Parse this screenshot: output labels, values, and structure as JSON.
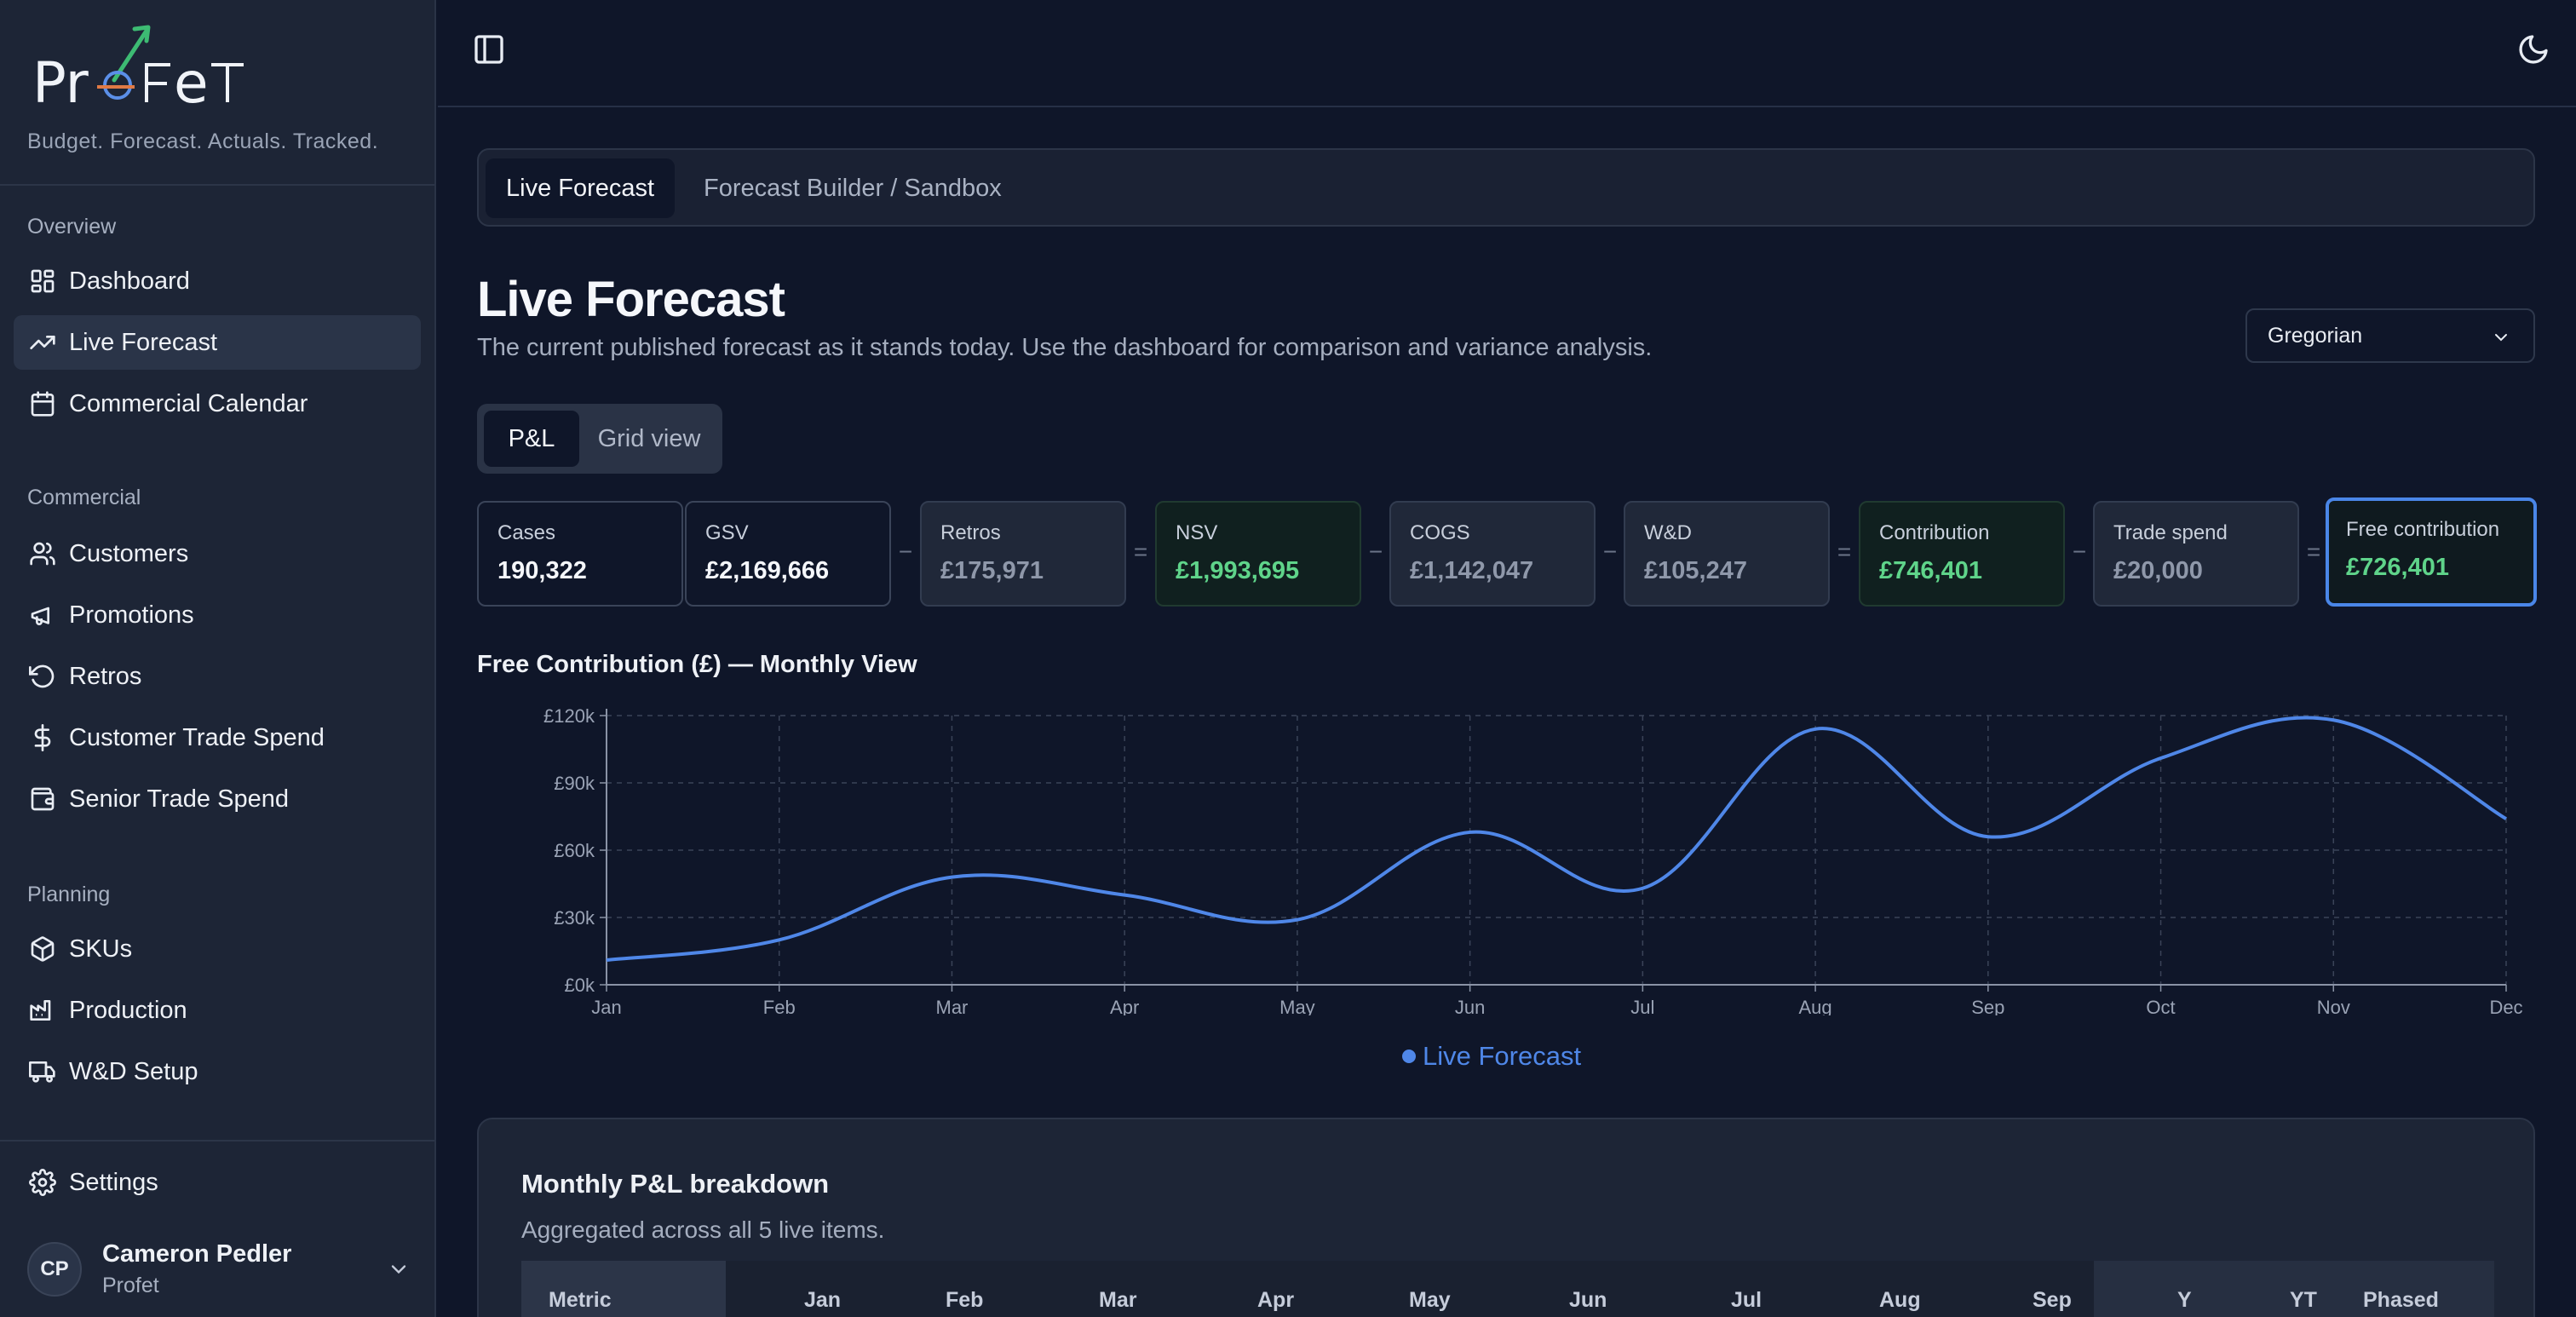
{
  "brand": {
    "tagline": "Budget. Forecast. Actuals. Tracked."
  },
  "sidebar": {
    "sections": [
      {
        "title": "Overview",
        "items": [
          {
            "label": "Dashboard",
            "icon": "dashboard-icon"
          },
          {
            "label": "Live Forecast",
            "icon": "trending-up-icon",
            "active": true
          },
          {
            "label": "Commercial Calendar",
            "icon": "calendar-icon"
          }
        ]
      },
      {
        "title": "Commercial",
        "items": [
          {
            "label": "Customers",
            "icon": "users-icon"
          },
          {
            "label": "Promotions",
            "icon": "megaphone-icon"
          },
          {
            "label": "Retros",
            "icon": "rotate-ccw-icon"
          },
          {
            "label": "Customer Trade Spend",
            "icon": "dollar-icon"
          },
          {
            "label": "Senior Trade Spend",
            "icon": "wallet-icon"
          }
        ]
      },
      {
        "title": "Planning",
        "items": [
          {
            "label": "SKUs",
            "icon": "package-icon"
          },
          {
            "label": "Production",
            "icon": "factory-icon"
          },
          {
            "label": "W&D Setup",
            "icon": "truck-icon"
          }
        ]
      }
    ],
    "settings_label": "Settings",
    "user": {
      "initials": "CP",
      "name": "Cameron Pedler",
      "org": "Profet"
    }
  },
  "tabs": [
    {
      "label": "Live Forecast",
      "active": true
    },
    {
      "label": "Forecast Builder / Sandbox",
      "active": false
    }
  ],
  "page": {
    "title": "Live Forecast",
    "subtitle": "The current published forecast as it stands today. Use the dashboard for comparison and variance analysis."
  },
  "calendar_select": {
    "value": "Gregorian"
  },
  "view_toggle": {
    "options": [
      "P&L",
      "Grid view"
    ],
    "selected": "P&L"
  },
  "kpis": [
    {
      "label": "Cases",
      "value": "190,322",
      "style": "white"
    },
    {
      "label": "GSV",
      "value": "£2,169,666",
      "style": "white"
    },
    {
      "label": "Retros",
      "value": "£175,971",
      "style": "grey"
    },
    {
      "label": "NSV",
      "value": "£1,993,695",
      "style": "green"
    },
    {
      "label": "COGS",
      "value": "£1,142,047",
      "style": "grey"
    },
    {
      "label": "W&D",
      "value": "£105,247",
      "style": "grey"
    },
    {
      "label": "Contribution",
      "value": "£746,401",
      "style": "green"
    },
    {
      "label": "Trade spend",
      "value": "£20,000",
      "style": "grey"
    },
    {
      "label": "Free contribution",
      "value": "£726,401",
      "style": "highlight"
    }
  ],
  "operators": [
    "−",
    "=",
    "−",
    "−",
    "=",
    "−",
    "="
  ],
  "chart_title": "Free Contribution (£) — Monthly View",
  "chart_data": {
    "type": "line",
    "x": [
      "Jan",
      "Feb",
      "Mar",
      "Apr",
      "May",
      "Jun",
      "Jul",
      "Aug",
      "Sep",
      "Oct",
      "Nov",
      "Dec"
    ],
    "series": [
      {
        "name": "Live Forecast",
        "color": "#4f87e8",
        "values": [
          11000,
          20000,
          48000,
          40000,
          29000,
          68000,
          43000,
          114000,
          66000,
          101000,
          118000,
          74000
        ]
      }
    ],
    "ylim": [
      0,
      120000
    ],
    "yticks": [
      "£0k",
      "£30k",
      "£60k",
      "£90k",
      "£120k"
    ],
    "grid": true,
    "legend": "bottom"
  },
  "pl": {
    "title": "Monthly P&L breakdown",
    "subtitle": "Aggregated across all 5 live items.",
    "columns": [
      "Metric",
      "Jan",
      "Feb",
      "Mar",
      "Apr",
      "May",
      "Jun",
      "Jul",
      "Aug",
      "Sep",
      "Y",
      "YT",
      "Phased"
    ]
  }
}
